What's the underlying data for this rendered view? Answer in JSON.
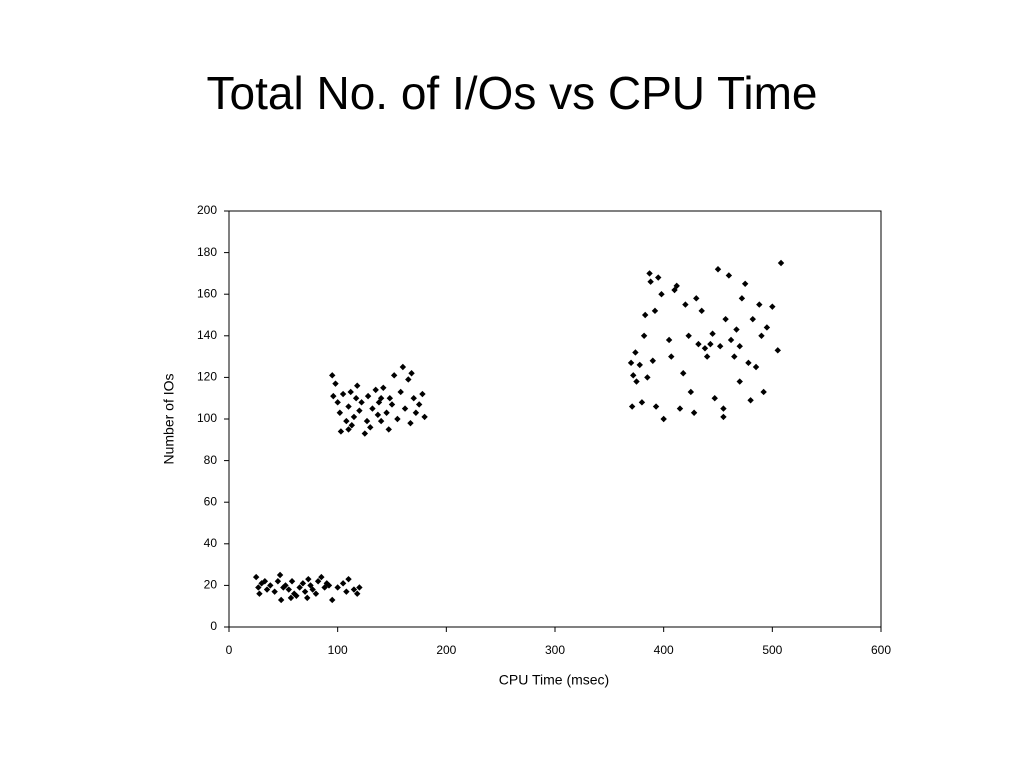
{
  "chart_data": {
    "type": "scatter",
    "title": "Total No. of I/Os vs CPU Time",
    "x_label": "CPU Time (msec)",
    "y_label": "Number of IOs",
    "color": "#000000",
    "x": [
      25,
      27,
      28,
      30,
      35,
      38,
      42,
      45,
      47,
      48,
      50,
      52,
      55,
      58,
      60,
      62,
      65,
      68,
      70,
      72,
      75,
      77,
      80,
      82,
      85,
      88,
      90,
      95,
      100,
      105,
      108,
      110,
      115,
      118,
      120,
      33,
      57,
      92,
      73,
      95,
      96,
      98,
      100,
      102,
      103,
      105,
      108,
      110,
      112,
      113,
      115,
      117,
      118,
      120,
      122,
      125,
      127,
      128,
      130,
      132,
      135,
      137,
      138,
      140,
      142,
      145,
      147,
      148,
      150,
      152,
      155,
      158,
      160,
      162,
      165,
      167,
      170,
      172,
      175,
      178,
      180,
      110,
      140,
      168,
      370,
      371,
      372,
      374,
      375,
      378,
      380,
      382,
      383,
      385,
      387,
      388,
      390,
      392,
      393,
      395,
      398,
      400,
      405,
      407,
      410,
      412,
      415,
      418,
      420,
      423,
      425,
      428,
      430,
      432,
      435,
      438,
      440,
      443,
      445,
      447,
      450,
      452,
      455,
      457,
      460,
      462,
      465,
      467,
      470,
      472,
      475,
      478,
      480,
      482,
      485,
      488,
      490,
      492,
      495,
      500,
      505,
      508,
      470,
      455
    ],
    "values": [
      24,
      19,
      16,
      21,
      18,
      20,
      17,
      22,
      25,
      13,
      19,
      20,
      18,
      22,
      16,
      15,
      19,
      21,
      17,
      14,
      20,
      18,
      16,
      22,
      24,
      19,
      21,
      13,
      19,
      21,
      17,
      23,
      18,
      16,
      19,
      22,
      14,
      20,
      23,
      121,
      111,
      117,
      108,
      103,
      94,
      112,
      99,
      106,
      113,
      97,
      101,
      110,
      116,
      104,
      108,
      93,
      99,
      111,
      96,
      105,
      114,
      102,
      108,
      99,
      115,
      103,
      95,
      110,
      107,
      121,
      100,
      113,
      125,
      105,
      119,
      98,
      110,
      103,
      107,
      112,
      101,
      95,
      110,
      122,
      127,
      106,
      121,
      132,
      118,
      126,
      108,
      140,
      150,
      120,
      170,
      166,
      128,
      152,
      106,
      168,
      160,
      100,
      138,
      130,
      162,
      164,
      105,
      122,
      155,
      140,
      113,
      103,
      158,
      136,
      152,
      134,
      130,
      136,
      141,
      110,
      172,
      135,
      105,
      148,
      169,
      138,
      130,
      143,
      118,
      158,
      165,
      127,
      109,
      148,
      125,
      155,
      140,
      113,
      144,
      154,
      133,
      175,
      135,
      101
    ],
    "xlim": [
      0,
      600
    ],
    "xticks": [
      0,
      100,
      200,
      300,
      400,
      500,
      600
    ],
    "ylim": [
      0,
      200
    ],
    "yticks": [
      0,
      20,
      40,
      60,
      80,
      100,
      120,
      140,
      160,
      180,
      200
    ]
  }
}
